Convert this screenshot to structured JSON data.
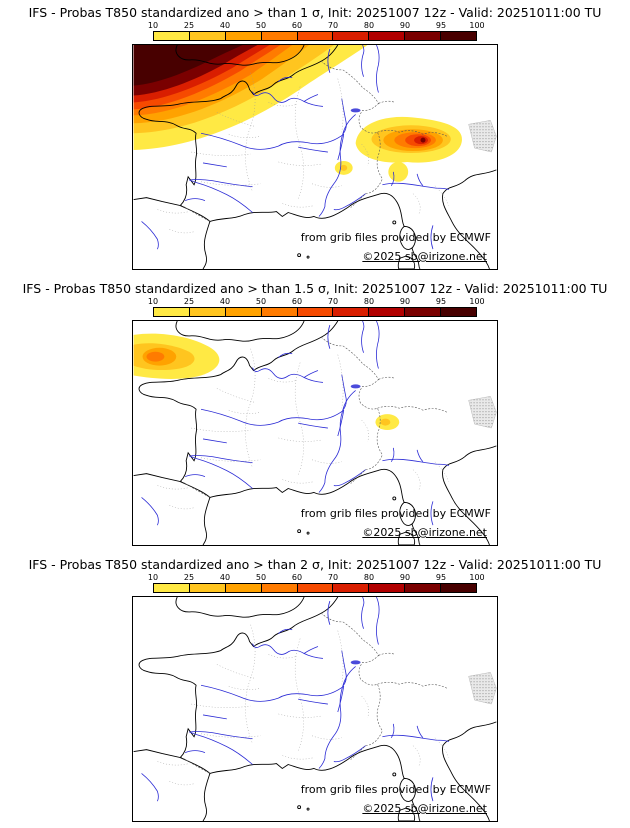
{
  "colorbar": {
    "ticks": [
      "10",
      "25",
      "40",
      "50",
      "60",
      "70",
      "80",
      "90",
      "95",
      "100"
    ],
    "segment_colors": [
      "#ffe944",
      "#ffc51f",
      "#ffa200",
      "#ff7b00",
      "#f64a00",
      "#d91e00",
      "#b10000",
      "#7a0000",
      "#480000"
    ]
  },
  "panels": [
    {
      "title": "IFS - Probas T850  standardized ano > than 1 σ, Init: 20251007 12z - Valid: 20251011:00 TU",
      "sigma_threshold": "1",
      "attribution": "from grib files provided by ECMWF",
      "copyright": "©2025 sb@irizone.net",
      "shaded_regions": [
        "95-100% maximum over Brittany, western English Channel and southern England",
        "60-95% ring over Normandy and northwest France",
        "10-50% band across northern France",
        "40-90% elongated area over the Alps and Po valley with small 90-95% core",
        "small 10-25% spot near Lyon / northern Alps"
      ]
    },
    {
      "title": "IFS - Probas T850  standardized ano > than 1.5 σ, Init: 20251007 12z - Valid: 20251011:00 TU",
      "sigma_threshold": "1.5",
      "attribution": "from grib files provided by ECMWF",
      "copyright": "©2025 sb@irizone.net",
      "shaded_regions": [
        "10-50% patch over the western English Channel and tip of Brittany",
        "small 10-25% spot over the northern Alps"
      ]
    },
    {
      "title": "IFS - Probas T850  standardized ano > than 2 σ, Init: 20251007 12z - Valid: 20251011:00 TU",
      "sigma_threshold": "2",
      "attribution": "from grib files provided by ECMWF",
      "copyright": "©2025 sb@irizone.net",
      "shaded_regions": []
    }
  ],
  "map": {
    "river_color": "#2b2bd5",
    "coast_color": "#000000",
    "relief_patch": "gray speckled Alps relief near right edge"
  }
}
